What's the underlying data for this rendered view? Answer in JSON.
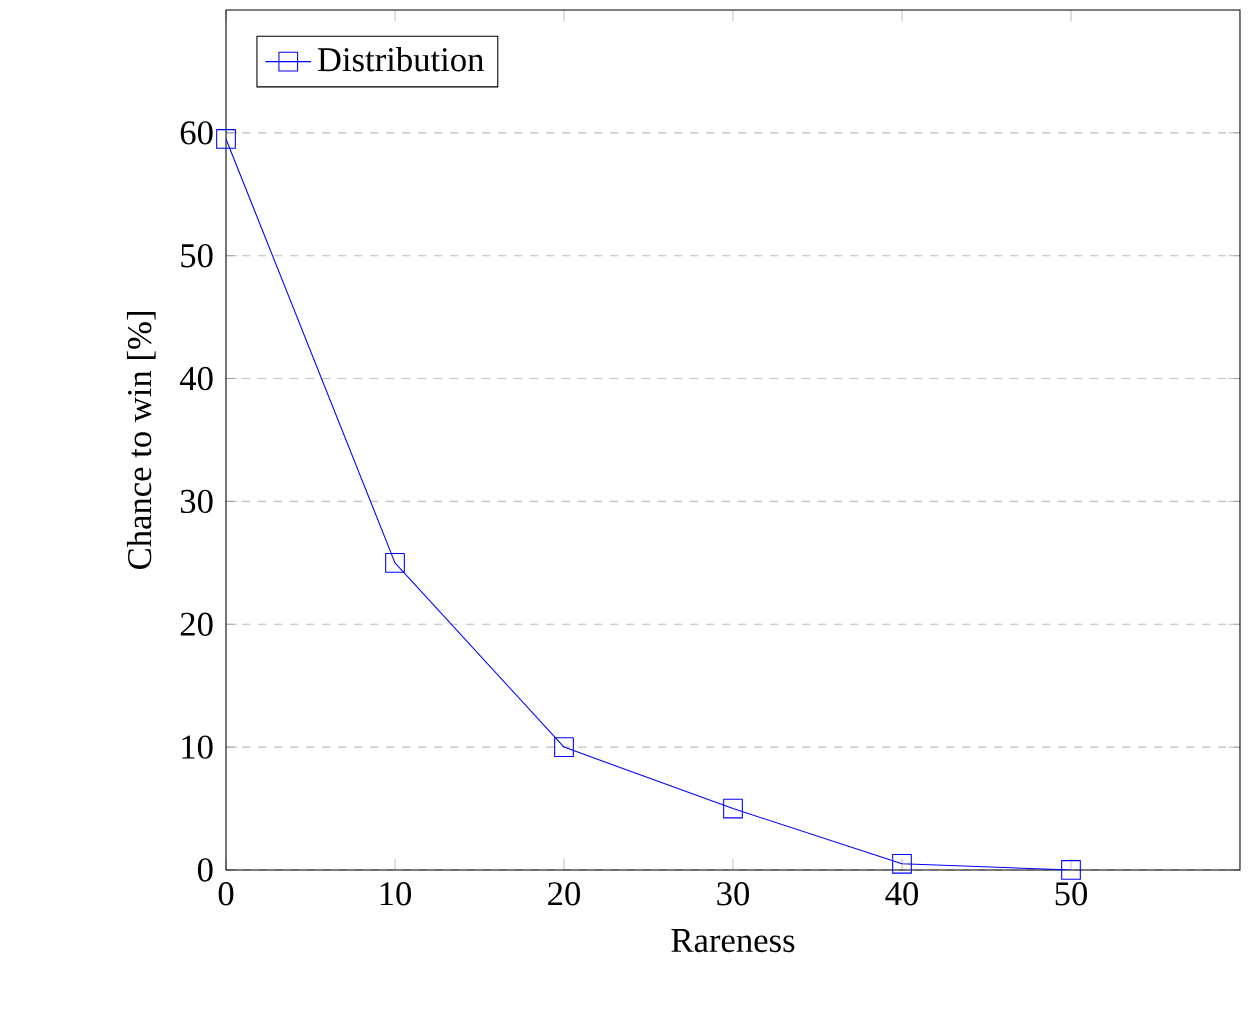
{
  "chart_data": {
    "type": "line",
    "xlabel": "Rareness",
    "ylabel": "Chance to win [%]",
    "x": [
      0,
      10,
      20,
      30,
      40,
      50
    ],
    "series": [
      {
        "name": "Distribution",
        "color": "#0000ff",
        "values": [
          59.5,
          25,
          10,
          5,
          0.5,
          0
        ]
      }
    ],
    "xlim": [
      0,
      60
    ],
    "ylim": [
      0,
      70
    ],
    "xticks": [
      0,
      10,
      20,
      30,
      40,
      50
    ],
    "yticks": [
      0,
      10,
      20,
      30,
      40,
      50,
      60
    ],
    "grid": "y",
    "legend": "top left",
    "marker": "square",
    "line_style": "solid"
  }
}
